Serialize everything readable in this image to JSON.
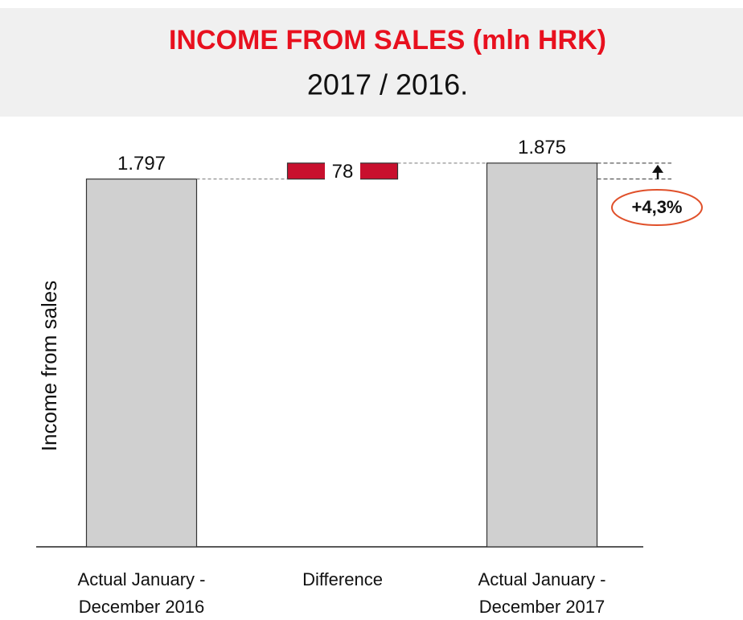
{
  "chart_data": {
    "type": "waterfall",
    "title": "INCOME FROM SALES (mln HRK)",
    "subtitle": "2017 / 2016.",
    "y_label": "Income from sales",
    "categories": [
      "Actual January - December 2016",
      "Difference",
      "Actual January - December 2017"
    ],
    "values": [
      1797,
      78,
      1875
    ],
    "value_labels": [
      "1.797",
      "78",
      "1.875"
    ],
    "colors": [
      "#d0d0d0",
      "#c8102e",
      "#d0d0d0"
    ],
    "ylim": [
      0,
      2000
    ],
    "annotation": "+4,3%"
  }
}
